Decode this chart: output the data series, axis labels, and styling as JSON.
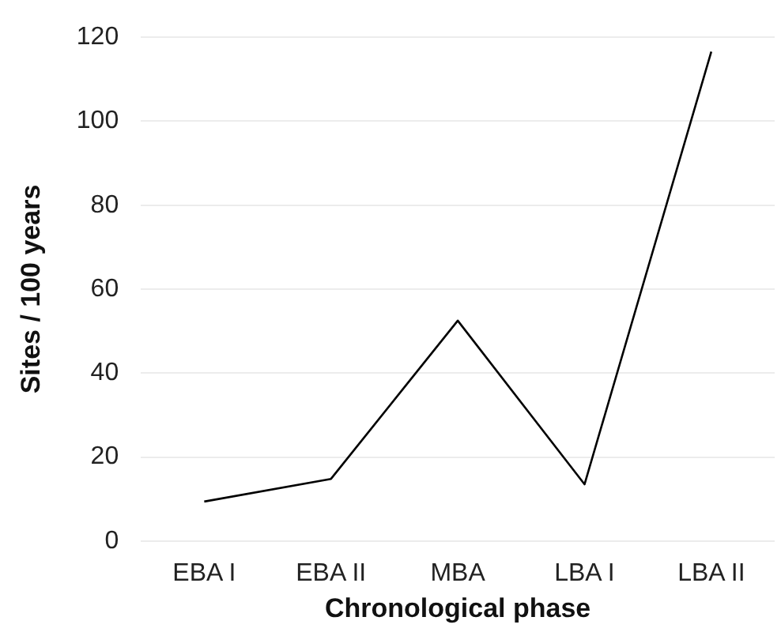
{
  "chart_data": {
    "type": "line",
    "xlabel": "Chronological phase",
    "ylabel": "Sites / 100 years",
    "categories": [
      "EBA I",
      "EBA II",
      "MBA",
      "LBA I",
      "LBA II"
    ],
    "series": [
      {
        "color": "#000000",
        "values": [
          9.4,
          14.8,
          52.5,
          13.5,
          116.6
        ]
      }
    ],
    "ylim": [
      0,
      120
    ],
    "yticks": [
      0,
      20,
      40,
      60,
      80,
      100,
      120
    ],
    "grid": "y",
    "legend": false,
    "marker": "none",
    "line_style": "solid"
  }
}
